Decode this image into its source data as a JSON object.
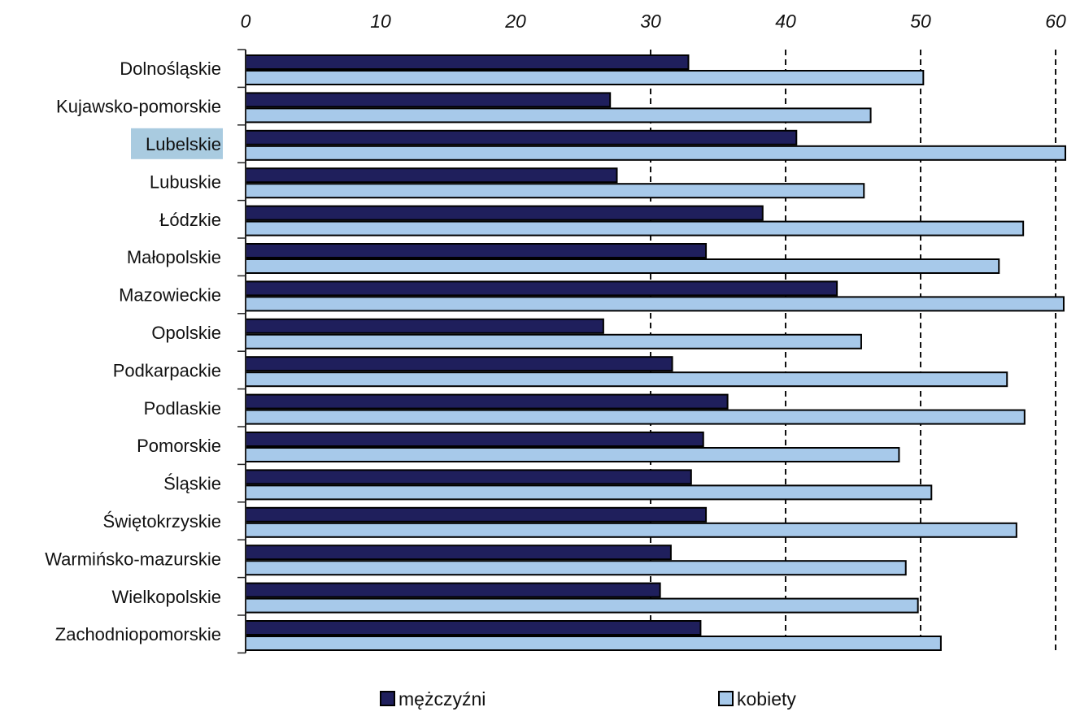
{
  "chart_data": {
    "type": "bar",
    "orientation": "horizontal",
    "xlim": [
      0,
      60
    ],
    "x_ticks": [
      "0",
      "10",
      "20",
      "30",
      "40",
      "50",
      "60"
    ],
    "grid": "dashed vertical lines at 30, 40, 50, 60",
    "axis_position": "top",
    "legend_position": "bottom",
    "highlighted_category": "Lubelskie",
    "categories": [
      "Dolnośląskie",
      "Kujawsko-pomorskie",
      "Lubelskie",
      "Lubuskie",
      "Łódzkie",
      "Małopolskie",
      "Mazowieckie",
      "Opolskie",
      "Podkarpackie",
      "Podlaskie",
      "Pomorskie",
      "Śląskie",
      "Świętokrzyskie",
      "Warmińsko-mazurskie",
      "Wielkopolskie",
      "Zachodniopomorskie"
    ],
    "series": [
      {
        "name": "mężczyźni",
        "color": "#1f1f5c",
        "values": [
          32.8,
          27.0,
          40.8,
          27.5,
          38.3,
          34.1,
          43.8,
          26.5,
          31.6,
          35.7,
          33.9,
          33.0,
          34.1,
          31.5,
          30.7,
          33.7
        ]
      },
      {
        "name": "kobiety",
        "color": "#a7c9ea",
        "values": [
          50.2,
          46.3,
          61.5,
          45.8,
          57.6,
          55.8,
          60.6,
          45.6,
          56.4,
          57.7,
          48.4,
          50.8,
          57.1,
          48.9,
          49.8,
          51.5
        ]
      }
    ]
  },
  "legend": {
    "items": [
      {
        "label": "mężczyźni",
        "color": "#1f1f5c"
      },
      {
        "label": "kobiety",
        "color": "#a7c9ea"
      }
    ]
  },
  "colors": {
    "highlight": "#a9cbe0",
    "axis": "#222222"
  }
}
